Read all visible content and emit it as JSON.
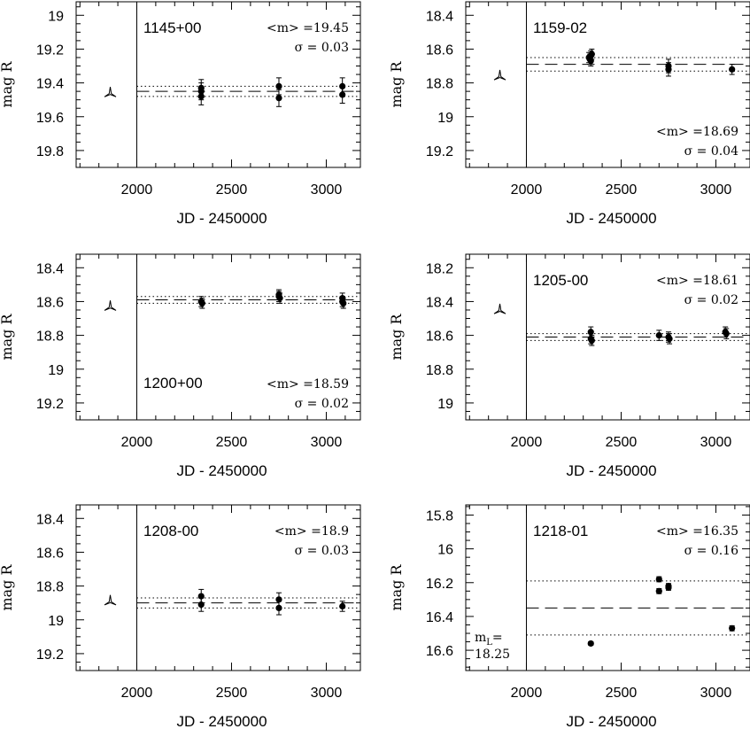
{
  "chart_data": [
    {
      "type": "scatter",
      "title": "1145+00",
      "xlabel": "JD - 2450000",
      "ylabel": "mag R",
      "xlim": [
        1680,
        3180
      ],
      "ylim": [
        19.9,
        18.92
      ],
      "y_inverted": true,
      "xticks": [
        2000,
        2500,
        3000
      ],
      "yticks": [
        19,
        19.2,
        19.4,
        19.6,
        19.8
      ],
      "ytick_labels": [
        "19",
        "19.2",
        "19.4",
        "19.6",
        "19.8"
      ],
      "stats": {
        "mean_label": "<m> =19.45",
        "sigma_label": "σ =    0.03"
      },
      "stats_position": "top-right",
      "mean": 19.45,
      "sigma": 0.03,
      "reference_jd": 2000,
      "marker_symbol": "tri",
      "marker": {
        "x": 1860,
        "y": 19.46
      },
      "points": [
        {
          "x": 2340,
          "y": 19.43,
          "err": 0.05
        },
        {
          "x": 2340,
          "y": 19.45,
          "err": 0.05
        },
        {
          "x": 2340,
          "y": 19.48,
          "err": 0.05
        },
        {
          "x": 2750,
          "y": 19.42,
          "err": 0.05
        },
        {
          "x": 2750,
          "y": 19.49,
          "err": 0.05
        },
        {
          "x": 3085,
          "y": 19.42,
          "err": 0.05
        },
        {
          "x": 3085,
          "y": 19.47,
          "err": 0.05
        }
      ]
    },
    {
      "type": "scatter",
      "title": "1159-02",
      "xlabel": "JD - 2450000",
      "ylabel": "mag R",
      "xlim": [
        1680,
        3180
      ],
      "ylim": [
        19.3,
        18.32
      ],
      "y_inverted": true,
      "xticks": [
        2000,
        2500,
        3000
      ],
      "yticks": [
        18.4,
        18.6,
        18.8,
        19,
        19.2
      ],
      "ytick_labels": [
        "18.4",
        "18.6",
        "18.8",
        "19",
        "19.2"
      ],
      "stats": {
        "mean_label": "<m> =18.69",
        "sigma_label": "σ =    0.04"
      },
      "stats_position": "bottom-right",
      "mean": 18.69,
      "sigma": 0.04,
      "reference_jd": 2000,
      "marker_symbol": "tri",
      "marker": {
        "x": 1860,
        "y": 18.76
      },
      "points": [
        {
          "x": 2330,
          "y": 18.65,
          "err": 0.03
        },
        {
          "x": 2335,
          "y": 18.66,
          "err": 0.03
        },
        {
          "x": 2340,
          "y": 18.64,
          "err": 0.03
        },
        {
          "x": 2345,
          "y": 18.63,
          "err": 0.03
        },
        {
          "x": 2340,
          "y": 18.67,
          "err": 0.03
        },
        {
          "x": 2750,
          "y": 18.7,
          "err": 0.04
        },
        {
          "x": 2750,
          "y": 18.72,
          "err": 0.04
        },
        {
          "x": 3085,
          "y": 18.72,
          "err": 0.03
        }
      ]
    },
    {
      "type": "scatter",
      "title": "1200+00",
      "xlabel": "JD - 2450000",
      "ylabel": "mag R",
      "xlim": [
        1680,
        3180
      ],
      "ylim": [
        19.3,
        18.32
      ],
      "y_inverted": true,
      "xticks": [
        2000,
        2500,
        3000
      ],
      "yticks": [
        18.4,
        18.6,
        18.8,
        19,
        19.2
      ],
      "ytick_labels": [
        "18.4",
        "18.6",
        "18.8",
        "19",
        "19.2"
      ],
      "stats": {
        "mean_label": "<m> =18.59",
        "sigma_label": "σ =    0.02"
      },
      "stats_position": "bottom-right",
      "mean": 18.59,
      "sigma": 0.02,
      "reference_jd": 2000,
      "marker_symbol": "tri",
      "marker": {
        "x": 1860,
        "y": 18.63
      },
      "points": [
        {
          "x": 2340,
          "y": 18.6,
          "err": 0.03
        },
        {
          "x": 2345,
          "y": 18.61,
          "err": 0.03
        },
        {
          "x": 2750,
          "y": 18.56,
          "err": 0.03
        },
        {
          "x": 2750,
          "y": 18.57,
          "err": 0.03
        },
        {
          "x": 2755,
          "y": 18.58,
          "err": 0.03
        },
        {
          "x": 3085,
          "y": 18.58,
          "err": 0.03
        },
        {
          "x": 3085,
          "y": 18.6,
          "err": 0.03
        },
        {
          "x": 3090,
          "y": 18.61,
          "err": 0.03
        }
      ]
    },
    {
      "type": "scatter",
      "title": "1205-00",
      "xlabel": "JD - 2450000",
      "ylabel": "mag R",
      "xlim": [
        1680,
        3180
      ],
      "ylim": [
        19.1,
        18.12
      ],
      "y_inverted": true,
      "xticks": [
        2000,
        2500,
        3000
      ],
      "yticks": [
        18.2,
        18.4,
        18.6,
        18.8,
        19
      ],
      "ytick_labels": [
        "18.2",
        "18.4",
        "18.6",
        "18.8",
        "19"
      ],
      "stats": {
        "mean_label": "<m> =18.61",
        "sigma_label": "σ =    0.02"
      },
      "stats_position": "top-right",
      "mean": 18.61,
      "sigma": 0.02,
      "reference_jd": 2000,
      "marker_symbol": "tri",
      "marker": {
        "x": 1860,
        "y": 18.45
      },
      "points": [
        {
          "x": 2340,
          "y": 18.58,
          "err": 0.03
        },
        {
          "x": 2340,
          "y": 18.62,
          "err": 0.03
        },
        {
          "x": 2345,
          "y": 18.63,
          "err": 0.03
        },
        {
          "x": 2700,
          "y": 18.6,
          "err": 0.03
        },
        {
          "x": 2750,
          "y": 18.61,
          "err": 0.03
        },
        {
          "x": 2755,
          "y": 18.62,
          "err": 0.03
        },
        {
          "x": 3050,
          "y": 18.58,
          "err": 0.03
        },
        {
          "x": 3055,
          "y": 18.59,
          "err": 0.03
        }
      ]
    },
    {
      "type": "scatter",
      "title": "1208-00",
      "xlabel": "JD - 2450000",
      "ylabel": "mag R",
      "xlim": [
        1680,
        3180
      ],
      "ylim": [
        19.3,
        18.32
      ],
      "y_inverted": true,
      "xticks": [
        2000,
        2500,
        3000
      ],
      "yticks": [
        18.4,
        18.6,
        18.8,
        19,
        19.2
      ],
      "ytick_labels": [
        "18.4",
        "18.6",
        "18.8",
        "19",
        "19.2"
      ],
      "stats": {
        "mean_label": "<m> =18.9",
        "sigma_label": "σ =    0.03"
      },
      "stats_position": "top-right",
      "mean": 18.9,
      "sigma": 0.03,
      "reference_jd": 2000,
      "marker_symbol": "tri",
      "marker": {
        "x": 1860,
        "y": 18.89
      },
      "points": [
        {
          "x": 2340,
          "y": 18.86,
          "err": 0.04
        },
        {
          "x": 2340,
          "y": 18.91,
          "err": 0.04
        },
        {
          "x": 2750,
          "y": 18.88,
          "err": 0.04
        },
        {
          "x": 2750,
          "y": 18.93,
          "err": 0.04
        },
        {
          "x": 3085,
          "y": 18.92,
          "err": 0.03
        }
      ]
    },
    {
      "type": "scatter",
      "title": "1218-01",
      "xlabel": "JD - 2450000",
      "ylabel": "mag R",
      "xlim": [
        1680,
        3180
      ],
      "ylim": [
        16.72,
        15.74
      ],
      "y_inverted": true,
      "xticks": [
        2000,
        2500,
        3000
      ],
      "yticks": [
        15.8,
        16,
        16.2,
        16.4,
        16.6
      ],
      "ytick_labels": [
        "15.8",
        "16",
        "16.2",
        "16.4",
        "16.6"
      ],
      "stats": {
        "mean_label": "<m> =16.35",
        "sigma_label": "σ =    0.16"
      },
      "stats_position": "top-right",
      "mean": 16.35,
      "sigma": 0.16,
      "reference_jd": 2000,
      "marker_symbol": "",
      "marker": null,
      "ml_label": {
        "prefix": "m",
        "subscript": "L",
        "suffix": "=",
        "value": "18.25"
      },
      "points": [
        {
          "x": 2340,
          "y": 16.56,
          "err": 0.01
        },
        {
          "x": 2700,
          "y": 16.18,
          "err": 0.015
        },
        {
          "x": 2700,
          "y": 16.25,
          "err": 0.015
        },
        {
          "x": 2750,
          "y": 16.22,
          "err": 0.015
        },
        {
          "x": 2750,
          "y": 16.23,
          "err": 0.015
        },
        {
          "x": 3085,
          "y": 16.47,
          "err": 0.015
        }
      ]
    }
  ]
}
